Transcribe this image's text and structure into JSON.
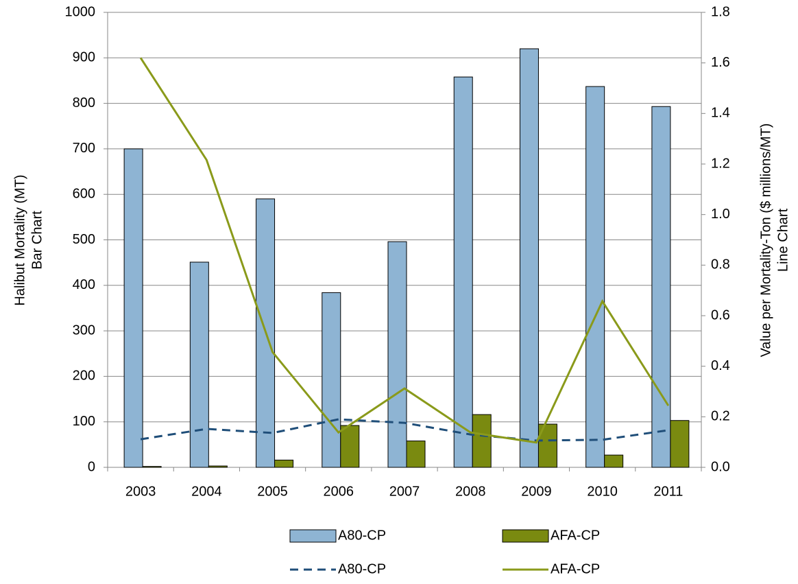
{
  "chart_data": {
    "type": "combo",
    "categories": [
      "2003",
      "2004",
      "2005",
      "2006",
      "2007",
      "2008",
      "2009",
      "2010",
      "2011"
    ],
    "y_label": [
      "Halibut Mortality (MT)",
      "Bar Chart"
    ],
    "y2_label": [
      "Value per Mortality-Ton ($ millions/MT)",
      "Line Chart"
    ],
    "ylim": [
      0,
      1000
    ],
    "yticks": [
      0,
      100,
      200,
      300,
      400,
      500,
      600,
      700,
      800,
      900,
      1000
    ],
    "y2lim": [
      0,
      1.8
    ],
    "y2ticks": [
      {
        "value": 0,
        "label": "0.0"
      },
      0.2,
      0.4,
      0.6,
      0.8,
      {
        "value": 1,
        "label": "1.0"
      },
      1.2,
      1.4,
      1.6,
      1.8
    ],
    "grid": true,
    "series": [
      {
        "name": "A80-CP",
        "type": "bar",
        "color": "#8eb4d3",
        "values": [
          700,
          451,
          590,
          384,
          496,
          858,
          920,
          837,
          793
        ]
      },
      {
        "name": "AFA-CP",
        "type": "bar",
        "color": "#7a8a10",
        "values": [
          2,
          3,
          16,
          92,
          58,
          116,
          95,
          27,
          103
        ]
      },
      {
        "name": "A80-CP",
        "type": "line",
        "axis": "y2",
        "dashed": true,
        "color": "#1f4e79",
        "values": [
          0.111,
          0.152,
          0.136,
          0.19,
          0.176,
          0.13,
          0.106,
          0.109,
          0.147
        ]
      },
      {
        "name": "AFA-CP",
        "type": "line",
        "axis": "y2",
        "dashed": false,
        "color": "#8a9a1a",
        "values": [
          1.62,
          1.216,
          0.456,
          0.138,
          0.312,
          0.138,
          0.098,
          0.657,
          0.244
        ]
      }
    ]
  }
}
